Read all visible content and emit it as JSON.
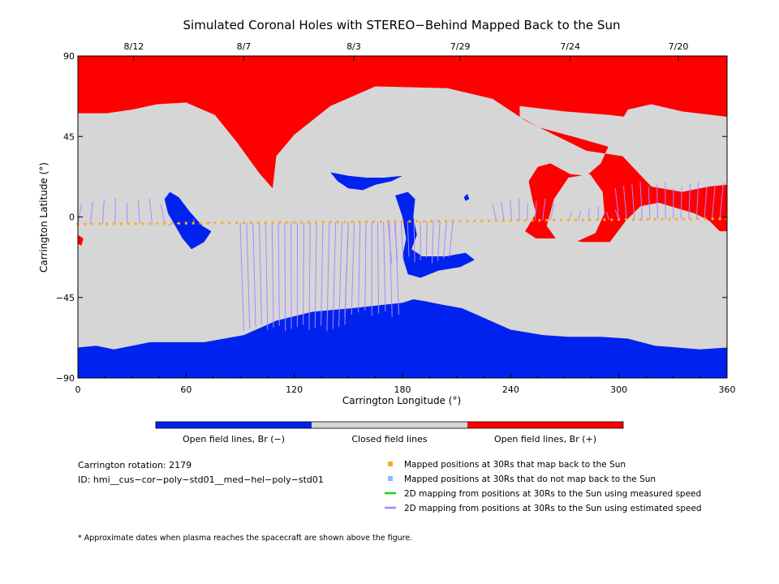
{
  "chart_data": {
    "type": "heatmap",
    "title": "Simulated Coronal Holes with STEREO−Behind Mapped Back to the Sun",
    "xlabel": "Carrington Longitude (°)",
    "ylabel": "Carrington Latitude (°)",
    "xlim": [
      0,
      360
    ],
    "ylim": [
      -90,
      90
    ],
    "x_ticks": [
      0,
      60,
      120,
      180,
      240,
      300,
      360
    ],
    "y_ticks": [
      90,
      45,
      0,
      -45,
      -90
    ],
    "top_axis": {
      "ticks": [
        {
          "lon": 31,
          "label": "8/12"
        },
        {
          "lon": 92,
          "label": "8/7"
        },
        {
          "lon": 153,
          "label": "8/3"
        },
        {
          "lon": 212,
          "label": "7/29"
        },
        {
          "lon": 273,
          "label": "7/24"
        },
        {
          "lon": 333,
          "label": "7/20"
        }
      ]
    },
    "colorbar": [
      {
        "label": "Open field lines, Br (−)",
        "color": "#0022ee"
      },
      {
        "label": "Closed field lines",
        "color": "#d6d6d6"
      },
      {
        "label": "Open field lines, Br (+)",
        "color": "#ff0000"
      }
    ],
    "colors": {
      "open_negative": "#0022ee",
      "closed": "#d6d6d6",
      "open_positive": "#ff0000",
      "mapped_back": "#ffaa22",
      "not_mapped": "#88bbff",
      "measured_speed": "#22cc22",
      "estimated_speed": "#aa88ff"
    },
    "regions": [
      {
        "name": "north_polar_positive",
        "color": "open_positive",
        "points": [
          [
            0,
            90
          ],
          [
            360,
            90
          ],
          [
            360,
            56
          ],
          [
            335,
            59
          ],
          [
            318,
            63
          ],
          [
            305,
            60
          ],
          [
            298,
            48
          ],
          [
            290,
            30
          ],
          [
            282,
            23
          ],
          [
            273,
            24
          ],
          [
            262,
            30
          ],
          [
            255,
            28
          ],
          [
            250,
            20
          ],
          [
            252,
            10
          ],
          [
            254,
            2
          ],
          [
            248,
            -8
          ],
          [
            254,
            -12
          ],
          [
            266,
            -12
          ],
          [
            280,
            -14
          ],
          [
            295,
            -14
          ],
          [
            304,
            -2
          ],
          [
            312,
            6
          ],
          [
            322,
            8
          ],
          [
            332,
            5
          ],
          [
            342,
            2
          ],
          [
            350,
            -2
          ],
          [
            356,
            -8
          ],
          [
            360,
            -8
          ],
          [
            360,
            18
          ],
          [
            350,
            17
          ],
          [
            335,
            14
          ],
          [
            318,
            17
          ],
          [
            302,
            34
          ],
          [
            282,
            37
          ],
          [
            266,
            45
          ],
          [
            248,
            54
          ],
          [
            230,
            66
          ],
          [
            205,
            72
          ],
          [
            165,
            73
          ],
          [
            140,
            62
          ],
          [
            120,
            46
          ],
          [
            110,
            34
          ],
          [
            108,
            16
          ],
          [
            101,
            24
          ],
          [
            88,
            42
          ],
          [
            76,
            57
          ],
          [
            60,
            64
          ],
          [
            44,
            63
          ],
          [
            30,
            60
          ],
          [
            16,
            58
          ],
          [
            0,
            58
          ]
        ]
      },
      {
        "name": "north_polar_hole_island",
        "color": "closed",
        "points": [
          [
            245,
            62
          ],
          [
            270,
            59
          ],
          [
            295,
            57
          ],
          [
            330,
            53
          ],
          [
            355,
            56
          ],
          [
            346,
            47
          ],
          [
            326,
            36
          ],
          [
            302,
            37
          ],
          [
            278,
            44
          ],
          [
            256,
            50
          ],
          [
            245,
            56
          ]
        ]
      },
      {
        "name": "low_lat_positive_island",
        "color": "closed",
        "points": [
          [
            260,
            -5
          ],
          [
            264,
            10
          ],
          [
            272,
            22
          ],
          [
            284,
            24
          ],
          [
            291,
            14
          ],
          [
            292,
            2
          ],
          [
            287,
            -9
          ],
          [
            276,
            -14
          ],
          [
            265,
            -12
          ]
        ]
      },
      {
        "name": "south_polar_negative",
        "color": "open_negative",
        "points": [
          [
            0,
            -90
          ],
          [
            360,
            -90
          ],
          [
            360,
            -73
          ],
          [
            345,
            -74
          ],
          [
            320,
            -72
          ],
          [
            305,
            -68
          ],
          [
            290,
            -67
          ],
          [
            272,
            -67
          ],
          [
            258,
            -66
          ],
          [
            240,
            -63
          ],
          [
            222,
            -55
          ],
          [
            213,
            -51
          ],
          [
            202,
            -49
          ],
          [
            192,
            -47
          ],
          [
            186,
            -46
          ],
          [
            180,
            -48
          ],
          [
            170,
            -49
          ],
          [
            152,
            -51
          ],
          [
            130,
            -53
          ],
          [
            110,
            -58
          ],
          [
            92,
            -66
          ],
          [
            70,
            -70
          ],
          [
            40,
            -70
          ],
          [
            20,
            -74
          ],
          [
            10,
            -72
          ],
          [
            0,
            -73
          ]
        ]
      },
      {
        "name": "blue_spot_1",
        "color": "open_negative",
        "points": [
          [
            51,
            14
          ],
          [
            56,
            11
          ],
          [
            62,
            3
          ],
          [
            69,
            -5
          ],
          [
            74,
            -8
          ],
          [
            70,
            -14
          ],
          [
            63,
            -18
          ],
          [
            58,
            -12
          ],
          [
            54,
            -5
          ],
          [
            50,
            2
          ],
          [
            48,
            10
          ]
        ]
      },
      {
        "name": "blue_spot_2",
        "color": "open_negative",
        "points": [
          [
            140,
            25
          ],
          [
            150,
            23
          ],
          [
            160,
            22
          ],
          [
            170,
            22
          ],
          [
            180,
            23
          ],
          [
            174,
            20
          ],
          [
            165,
            18
          ],
          [
            158,
            15
          ],
          [
            150,
            16
          ],
          [
            144,
            20
          ]
        ]
      },
      {
        "name": "blue_spot_3",
        "color": "open_negative",
        "points": [
          [
            176,
            12
          ],
          [
            183,
            14
          ],
          [
            187,
            10
          ],
          [
            186,
            0
          ],
          [
            188,
            -10
          ],
          [
            185,
            -18
          ],
          [
            191,
            -22
          ],
          [
            204,
            -22
          ],
          [
            215,
            -20
          ],
          [
            220,
            -24
          ],
          [
            212,
            -28
          ],
          [
            200,
            -30
          ],
          [
            190,
            -34
          ],
          [
            183,
            -32
          ],
          [
            180,
            -22
          ],
          [
            182,
            -12
          ],
          [
            180,
            0
          ]
        ]
      },
      {
        "name": "blue_spot_4",
        "color": "open_negative",
        "points": [
          [
            214,
            11
          ],
          [
            216,
            13
          ],
          [
            217,
            10
          ],
          [
            215,
            9
          ]
        ]
      },
      {
        "name": "red_edge_spot",
        "color": "open_positive",
        "points": [
          [
            0,
            -10
          ],
          [
            3,
            -12
          ],
          [
            2,
            -16
          ],
          [
            0,
            -15
          ]
        ]
      }
    ],
    "spacecraft_track": {
      "name": "Mapped positions at 30Rs that map back to the Sun",
      "lon_start": 0,
      "lat_start": -4,
      "lon_end": 360,
      "lat_end": -1,
      "step_deg": 4
    },
    "mapping_lines": {
      "name": "2D mapping from positions at 30Rs to the Sun using estimated speed",
      "fans": [
        {
          "lon_from": 0,
          "lon_to": 48,
          "target_lat": 9,
          "count": 8
        },
        {
          "lon_from": 52,
          "lon_to": 72,
          "target_lat": -3,
          "count": 6
        },
        {
          "lon_from": 90,
          "lon_to": 150,
          "target_lat": -62,
          "count": 18
        },
        {
          "lon_from": 150,
          "lon_to": 176,
          "target_lat": -54,
          "count": 9
        },
        {
          "lon_from": 172,
          "lon_to": 208,
          "target_lat": -24,
          "count": 11
        },
        {
          "lon_from": 232,
          "lon_to": 262,
          "target_lat": 9,
          "count": 8
        },
        {
          "lon_from": 272,
          "lon_to": 300,
          "target_lat": 4,
          "count": 6
        },
        {
          "lon_from": 300,
          "lon_to": 356,
          "target_lat": 18,
          "count": 14
        }
      ]
    }
  },
  "info": {
    "rotation": "Carrington rotation: 2179",
    "id": "ID: hmi__cus−cor−poly−std01__med−hel−poly−std01"
  },
  "legend": [
    {
      "label": "Mapped positions at 30Rs that map back to the Sun",
      "kind": "square",
      "color": "#ffaa22"
    },
    {
      "label": "Mapped positions at 30Rs that do not map back to the Sun",
      "kind": "square",
      "color": "#88bbff"
    },
    {
      "label": "2D mapping from positions at 30Rs to the Sun using measured speed",
      "kind": "line",
      "color": "#22cc22"
    },
    {
      "label": "2D mapping from positions at 30Rs to the Sun using estimated speed",
      "kind": "line",
      "color": "#aa88ff"
    }
  ],
  "footnote": "* Approximate dates when plasma reaches the spacecraft are shown above the figure."
}
